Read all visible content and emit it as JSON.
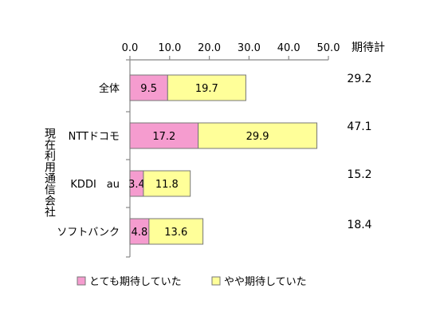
{
  "chart_data": {
    "type": "bar",
    "stacked": true,
    "orientation": "horizontal",
    "categories": [
      "全体",
      "NTTドコモ",
      "KDDI　au",
      "ソフトバンク"
    ],
    "category_group_label": "現在利用通信会社",
    "series": [
      {
        "name": "とても期待していた",
        "values": [
          9.5,
          17.2,
          3.4,
          4.8
        ],
        "color": "#f59ccf"
      },
      {
        "name": "やや期待していた",
        "values": [
          19.7,
          29.9,
          11.8,
          13.6
        ],
        "color": "#ffff99"
      }
    ],
    "totals_header": "期待計",
    "totals": [
      "29.2",
      "47.1",
      "15.2",
      "18.4"
    ],
    "value_labels": [
      [
        "9.5",
        "17.2",
        "3.4",
        "4.8"
      ],
      [
        "19.7",
        "29.9",
        "11.8",
        "13.6"
      ]
    ],
    "xlim": [
      0,
      50
    ],
    "xticks": [
      "0.0",
      "10.0",
      "20.0",
      "30.0",
      "40.0",
      "50.0"
    ],
    "grid": false,
    "legend_position": "bottom"
  }
}
